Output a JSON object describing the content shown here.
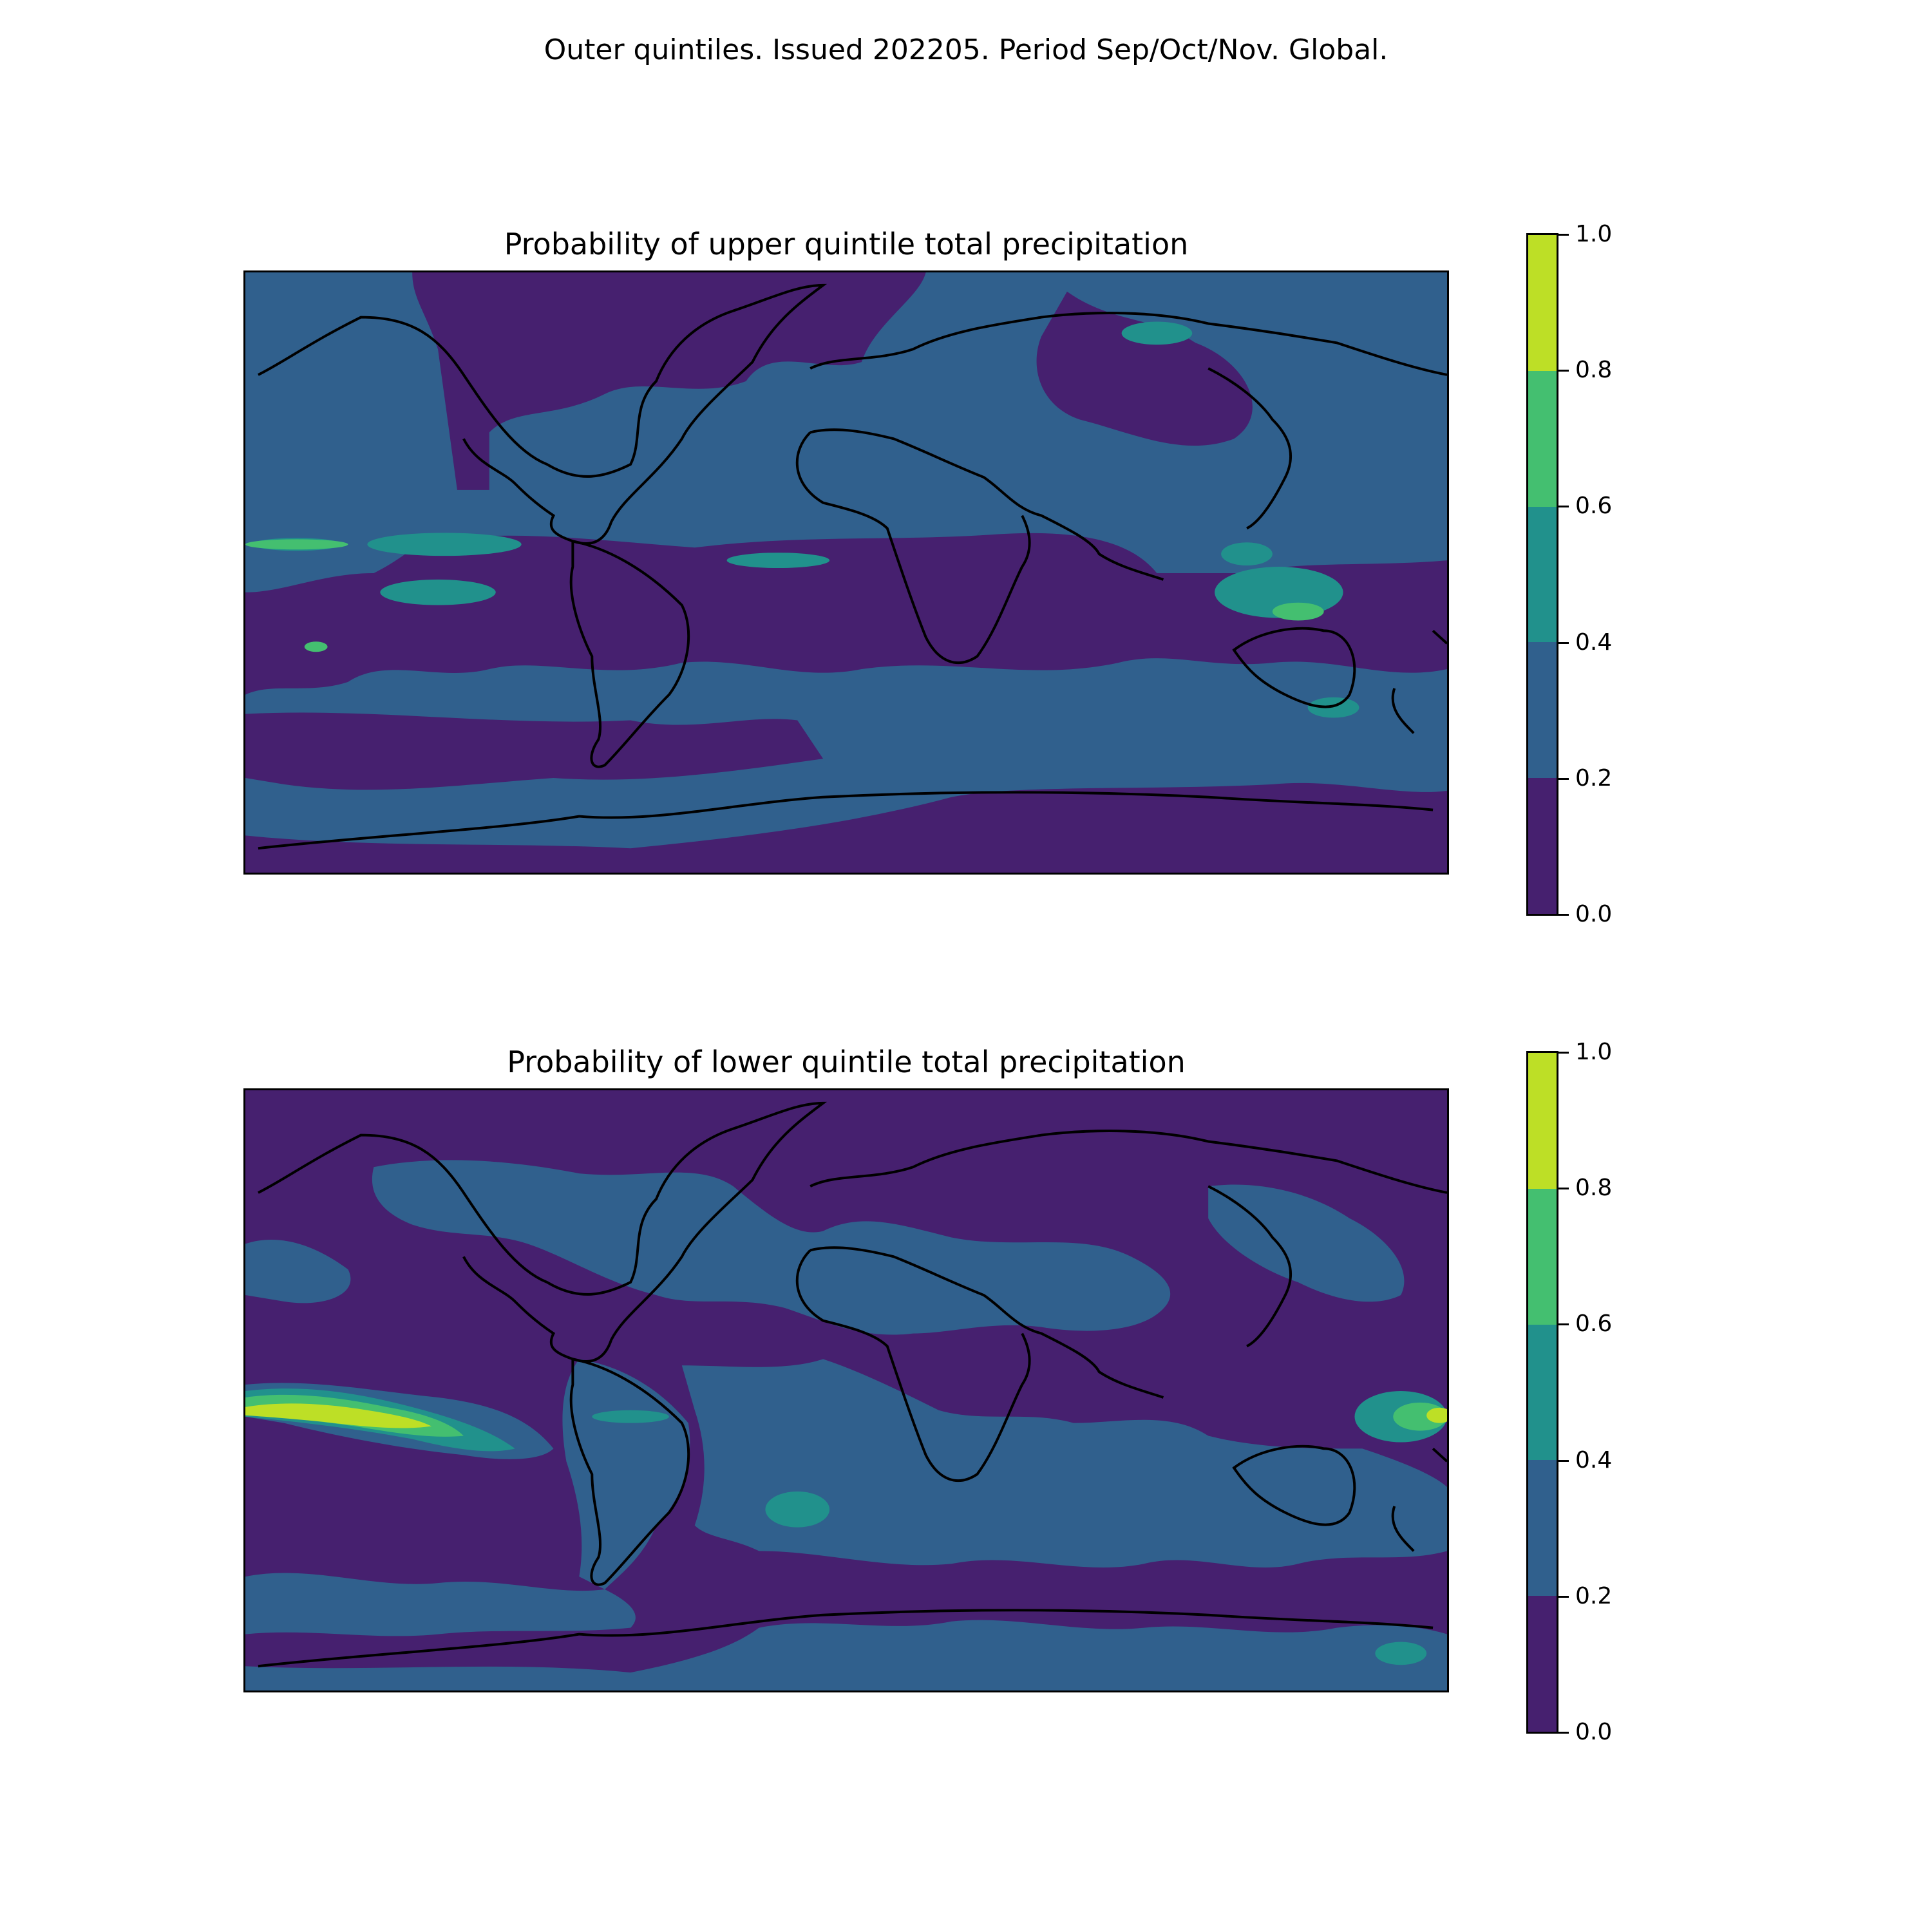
{
  "suptitle": "Outer quintiles. Issued 202205. Period Sep/Oct/Nov. Global.",
  "colorbar": {
    "ticks": [
      "1.0",
      "0.8",
      "0.6",
      "0.4",
      "0.2",
      "0.0"
    ],
    "levels": [
      {
        "range": [
          0.8,
          1.0
        ],
        "color": "#bddf26"
      },
      {
        "range": [
          0.6,
          0.8
        ],
        "color": "#44bf70"
      },
      {
        "range": [
          0.4,
          0.6
        ],
        "color": "#21918c"
      },
      {
        "range": [
          0.2,
          0.4
        ],
        "color": "#30608d"
      },
      {
        "range": [
          0.0,
          0.2
        ],
        "color": "#46206f"
      }
    ]
  },
  "panels": [
    {
      "title": "Probability of upper quintile total precipitation",
      "background_level": "0.2-0.4"
    },
    {
      "title": "Probability of lower quintile total precipitation",
      "background_level": "0.0-0.2"
    }
  ],
  "colors": {
    "lvl0": "#46206f",
    "lvl1": "#30608d",
    "lvl2": "#21918c",
    "lvl3": "#44bf70",
    "lvl4": "#bddf26",
    "coast": "#000000"
  }
}
